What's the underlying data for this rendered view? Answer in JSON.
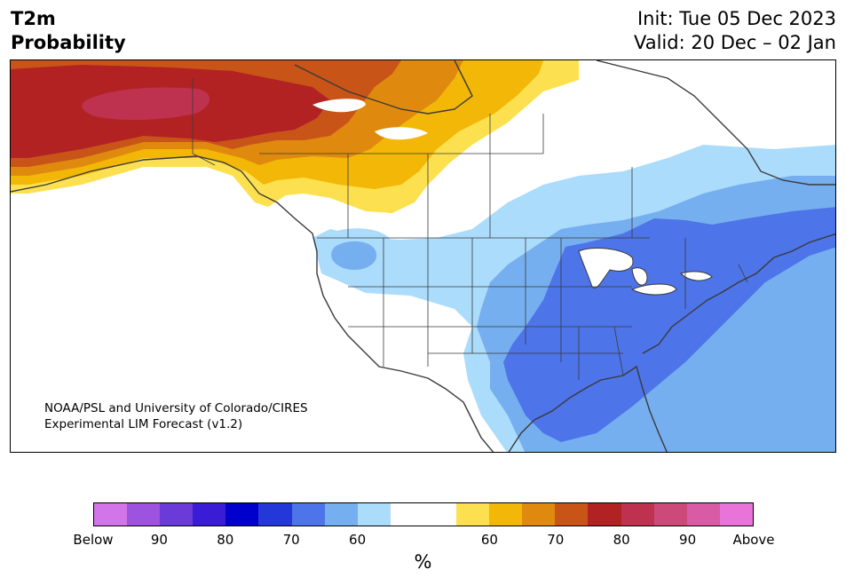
{
  "title": {
    "line1": "T2m",
    "line2": "Probability"
  },
  "info": {
    "init": "Init: Tue 05 Dec 2023",
    "valid": "Valid: 20 Dec – 02 Jan"
  },
  "credit": {
    "line1": "NOAA/PSL and University of Colorado/CIRES",
    "line2": "Experimental LIM Forecast (v1.2)"
  },
  "colorbar": {
    "colors": [
      "#d175e8",
      "#9d52e0",
      "#6a3bd9",
      "#3a1cd6",
      "#0000cc",
      "#2438d9",
      "#4d74e8",
      "#76afef",
      "#abdcfc",
      "#ffffff",
      "#ffffff",
      "#fde04f",
      "#f2b707",
      "#df8a0e",
      "#c85418",
      "#b32222",
      "#be3250",
      "#cc4a7a",
      "#d95ba6",
      "#e874d9"
    ],
    "ticks": [
      "Below",
      "90",
      "80",
      "70",
      "60",
      "60",
      "70",
      "80",
      "90",
      "Above"
    ],
    "unit": "%"
  },
  "map": {
    "water": "#ffffff",
    "coast": "#3a3a3a",
    "border": "#3a3a3a"
  }
}
